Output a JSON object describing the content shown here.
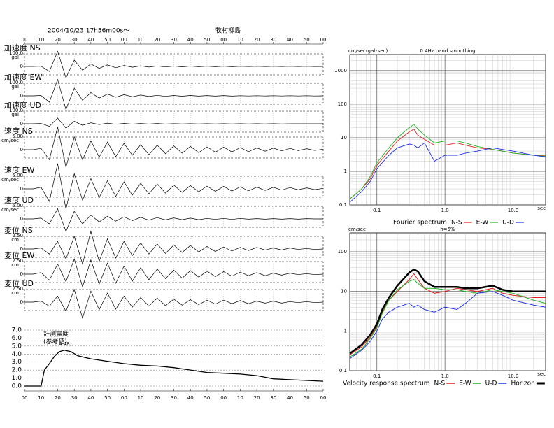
{
  "chart_data": [
    {
      "type": "seismogram",
      "date": "2004/10/23  17h56m00s～",
      "place": "牧村柳島",
      "xlim": [
        0,
        180
      ],
      "xticks": [
        {
          "value": 0,
          "label": "00"
        },
        10,
        20,
        30,
        40,
        50,
        {
          "value": 60,
          "label": "00"
        },
        {
          "value": 70,
          "label": "10"
        },
        {
          "value": 80,
          "label": "20"
        },
        {
          "value": 90,
          "label": "30"
        },
        {
          "value": 100,
          "label": "40"
        },
        {
          "value": 110,
          "label": "50"
        },
        {
          "value": 120,
          "label": "00"
        },
        {
          "value": 130,
          "label": "10"
        },
        {
          "value": 140,
          "label": "20"
        },
        {
          "value": 150,
          "label": "30"
        },
        {
          "value": 160,
          "label": "40"
        },
        {
          "value": 170,
          "label": "50"
        },
        {
          "value": 180,
          "label": "00"
        }
      ],
      "x": [
        0,
        5,
        10,
        15,
        20,
        25,
        30,
        35,
        40,
        45,
        50,
        55,
        60,
        65,
        70,
        75,
        80,
        85,
        90,
        95,
        100,
        105,
        110,
        115,
        120,
        125,
        130,
        135,
        140,
        145,
        150,
        155,
        160,
        165,
        170,
        175,
        180
      ],
      "traces": [
        {
          "name": "加速度 NS",
          "unit": "gal",
          "yticks": [
            0,
            {
              "value": 100,
              "label": "100.0"
            }
          ],
          "values": [
            0,
            0,
            2,
            -40,
            120,
            -90,
            50,
            -30,
            20,
            -15,
            12,
            -10,
            8,
            -6,
            5,
            -5,
            4,
            -4,
            3,
            -3,
            3,
            -2,
            2,
            -2,
            2,
            -2,
            1,
            -1,
            1,
            -1,
            1,
            -1,
            1,
            -1,
            1,
            -1,
            0
          ]
        },
        {
          "name": "加速度 EW",
          "unit": "gal",
          "yticks": [
            0,
            {
              "value": 100,
              "label": "100.0"
            }
          ],
          "values": [
            0,
            0,
            3,
            -50,
            130,
            -110,
            60,
            -35,
            25,
            -18,
            14,
            -11,
            9,
            -7,
            6,
            -5,
            4,
            -4,
            3,
            -3,
            3,
            -2,
            2,
            -2,
            2,
            -2,
            1,
            -1,
            1,
            -1,
            1,
            -1,
            1,
            -1,
            1,
            -1,
            0
          ]
        },
        {
          "name": "加速度 UD",
          "unit": "gal",
          "yticks": [
            0,
            {
              "value": 100,
              "label": "100.0"
            }
          ],
          "values": [
            0,
            0,
            2,
            -20,
            45,
            -35,
            20,
            -12,
            8,
            -6,
            5,
            -4,
            3,
            -3,
            2,
            -2,
            2,
            -2,
            1,
            -1,
            1,
            -1,
            1,
            -1,
            1,
            -1,
            1,
            -1,
            1,
            -1,
            1,
            -1,
            0,
            0,
            0,
            0,
            0
          ]
        },
        {
          "name": "速度 NS",
          "unit": "cm/sec",
          "yticks": [
            0,
            {
              "value": 5,
              "label": "5.00"
            }
          ],
          "values": [
            0,
            0,
            0.5,
            -4,
            9,
            -7,
            5,
            -4,
            3.5,
            -3,
            3,
            -2.8,
            2.5,
            -2.2,
            2,
            -2,
            1.8,
            -1.6,
            1.5,
            -1.4,
            1.3,
            -1.2,
            1.1,
            -1,
            1,
            -0.9,
            0.8,
            -0.8,
            0.7,
            -0.6,
            0.6,
            -0.5,
            0.5,
            -0.4,
            0.4,
            -0.3,
            0.2
          ]
        },
        {
          "name": "速度 EW",
          "unit": "cm/sec",
          "yticks": [
            0,
            {
              "value": 5,
              "label": "5.00"
            }
          ],
          "values": [
            0,
            0,
            0.6,
            -5,
            10,
            -8,
            6,
            -4.5,
            4,
            -3.5,
            3.2,
            -3,
            2.8,
            -2.5,
            2.2,
            -2,
            1.9,
            -1.7,
            1.5,
            -1.4,
            1.3,
            -1.2,
            1.1,
            -1,
            1,
            -0.9,
            0.8,
            -0.8,
            0.7,
            -0.6,
            0.6,
            -0.5,
            0.5,
            -0.4,
            0.4,
            -0.3,
            0.2
          ]
        },
        {
          "name": "速度 UD",
          "unit": "cm/sec",
          "yticks": [
            0,
            {
              "value": 5,
              "label": "5.00"
            }
          ],
          "values": [
            0,
            0,
            0.3,
            -2,
            4,
            -5,
            3,
            -2,
            1.5,
            -1.2,
            1,
            -0.9,
            0.8,
            -0.7,
            0.6,
            -0.5,
            0.5,
            -0.4,
            0.4,
            -0.3,
            0.3,
            -0.3,
            0.2,
            -0.2,
            0.2,
            -0.2,
            0.2,
            -0.1,
            0.1,
            -0.1,
            0.1,
            -0.1,
            0.1,
            -0.1,
            0.1,
            0,
            0
          ]
        },
        {
          "name": "変位 NS",
          "unit": "cm",
          "yticks": [
            0,
            {
              "value": 2.5,
              "label": "2.50"
            }
          ],
          "values": [
            0,
            0,
            0.2,
            -1,
            1.5,
            -2,
            2.5,
            -3,
            3.5,
            -2.5,
            2,
            -1.8,
            1.5,
            -1.3,
            1.2,
            -1,
            1,
            -0.9,
            0.8,
            -0.7,
            0.7,
            -0.6,
            0.5,
            -0.5,
            0.4,
            -0.4,
            0.3,
            -0.3,
            0.3,
            -0.2,
            0.2,
            -0.2,
            0.2,
            -0.1,
            0.1,
            -0.1,
            0
          ]
        },
        {
          "name": "変位 EW",
          "unit": "cm",
          "yticks": [
            0,
            {
              "value": 2.5,
              "label": "2.50"
            }
          ],
          "values": [
            0,
            0,
            0.3,
            -1.2,
            2,
            -1.5,
            3,
            -2.5,
            2.8,
            -2,
            2.2,
            -1.8,
            1.6,
            -1.4,
            1.3,
            -1.1,
            1,
            -0.9,
            0.8,
            -0.8,
            0.7,
            -0.6,
            0.6,
            -0.5,
            0.5,
            -0.4,
            0.4,
            -0.3,
            0.3,
            -0.3,
            0.2,
            -0.2,
            0.2,
            -0.1,
            0.1,
            -0.1,
            0
          ]
        },
        {
          "name": "変位 UD",
          "unit": "cm",
          "yticks": [
            0,
            {
              "value": 2.5,
              "label": "2.50"
            }
          ],
          "values": [
            0,
            0,
            0.2,
            -0.8,
            1.2,
            -1.8,
            2.5,
            -3.2,
            2.2,
            -1.5,
            1.8,
            -1.4,
            1.2,
            -1,
            0.9,
            -0.8,
            0.8,
            -0.7,
            0.6,
            -0.6,
            0.5,
            -0.5,
            0.4,
            -0.4,
            0.4,
            -0.3,
            0.3,
            -0.3,
            0.2,
            -0.2,
            0.2,
            -0.2,
            0.1,
            -0.1,
            0.1,
            -0.1,
            0
          ]
        }
      ]
    },
    {
      "type": "line",
      "title": "計測震度",
      "subtitle": "(参考値)",
      "color": "#000000",
      "x": [
        0,
        10,
        11,
        12,
        15,
        18,
        21,
        24,
        28,
        32,
        40,
        50,
        60,
        70,
        80,
        90,
        100,
        110,
        120,
        130,
        140,
        150,
        160,
        170,
        180
      ],
      "values": [
        0,
        0,
        1.0,
        2.0,
        2.8,
        3.7,
        4.3,
        4.48,
        4.3,
        3.8,
        3.4,
        3.1,
        2.8,
        2.6,
        2.5,
        2.3,
        2.0,
        1.7,
        1.6,
        1.5,
        1.3,
        0.9,
        0.8,
        0.7,
        0.6
      ],
      "peak": {
        "x": 24,
        "value": 4.48
      },
      "xlim": [
        0,
        180
      ],
      "ylim": [
        0,
        7
      ],
      "yticks": [
        {
          "value": 0,
          "label": "0.0"
        },
        {
          "value": 1,
          "label": "1.0"
        },
        {
          "value": 2,
          "label": "2.0"
        },
        {
          "value": 3,
          "label": "3.0"
        },
        {
          "value": 4,
          "label": "4.0"
        },
        {
          "value": 5,
          "label": "5.0"
        },
        {
          "value": 6,
          "label": "6.0"
        },
        {
          "value": 7,
          "label": "7.0"
        }
      ],
      "xticks": [
        {
          "value": 0,
          "label": "00"
        },
        10,
        20,
        30,
        40,
        50,
        {
          "value": 60,
          "label": "00"
        },
        {
          "value": 70,
          "label": "10"
        },
        {
          "value": 80,
          "label": "20"
        },
        {
          "value": 90,
          "label": "30"
        },
        {
          "value": 100,
          "label": "40"
        },
        {
          "value": 110,
          "label": "50"
        },
        {
          "value": 120,
          "label": "00"
        },
        {
          "value": 130,
          "label": "10"
        },
        {
          "value": 140,
          "label": "20"
        },
        {
          "value": 150,
          "label": "30"
        },
        {
          "value": 160,
          "label": "40"
        },
        {
          "value": 170,
          "label": "50"
        },
        {
          "value": 180,
          "label": "00"
        }
      ]
    },
    {
      "type": "loglog",
      "ylabel": "cm/sec(gal･sec)",
      "title": "0.4Hz band smoothing",
      "xlabel": "sec",
      "legend_title": "Fourier spectrum",
      "xscale": "log",
      "yscale": "log",
      "grid": true,
      "xlim": [
        0.04,
        30
      ],
      "ylim": [
        0.1,
        3000
      ],
      "xticks": [
        0.1,
        {
          "value": 1,
          "label": "1.0"
        },
        {
          "value": 10,
          "label": "10.0"
        }
      ],
      "yticks": [
        0.1,
        1,
        10,
        100,
        1000
      ],
      "x": [
        0.04,
        0.06,
        0.08,
        0.1,
        0.15,
        0.2,
        0.3,
        0.35,
        0.4,
        0.5,
        0.7,
        1,
        1.5,
        2,
        3,
        5,
        10,
        20,
        30
      ],
      "series": [
        {
          "name": "N-S",
          "color": "#e02020",
          "values": [
            0.15,
            0.3,
            0.6,
            1.5,
            4,
            8,
            15,
            18,
            12,
            9,
            6,
            6,
            7,
            6,
            5,
            4.5,
            3.5,
            3,
            2.9
          ]
        },
        {
          "name": "E-W",
          "color": "#20b020",
          "values": [
            0.15,
            0.3,
            0.7,
            1.8,
            5,
            10,
            20,
            25,
            18,
            12,
            7,
            8,
            8,
            7,
            5.5,
            4.5,
            3.5,
            3,
            2.8
          ]
        },
        {
          "name": "U-D",
          "color": "#2030e0",
          "values": [
            0.12,
            0.25,
            0.5,
            1.2,
            3,
            5,
            6.5,
            6,
            5,
            7,
            2,
            3,
            3,
            3.5,
            4,
            5,
            4,
            3,
            2.7
          ]
        }
      ]
    },
    {
      "type": "loglog",
      "ylabel": "cm/sec",
      "title": "h=5%",
      "xlabel": "sec",
      "legend_title": "Velocity response spectrum",
      "xscale": "log",
      "yscale": "log",
      "grid": true,
      "xlim": [
        0.04,
        30
      ],
      "ylim": [
        0.1,
        300
      ],
      "xticks": [
        0.1,
        {
          "value": 1,
          "label": "1.0"
        },
        {
          "value": 10,
          "label": "10.0"
        }
      ],
      "yticks": [
        0.1,
        1,
        10,
        100
      ],
      "x": [
        0.04,
        0.06,
        0.08,
        0.1,
        0.12,
        0.15,
        0.2,
        0.3,
        0.35,
        0.4,
        0.5,
        0.7,
        1,
        1.5,
        2,
        3,
        5,
        7,
        10,
        20,
        30
      ],
      "series": [
        {
          "name": "N-S",
          "color": "#e02020",
          "width": 1,
          "values": [
            0.25,
            0.4,
            0.7,
            1.3,
            3,
            6,
            10,
            20,
            28,
            20,
            12,
            9,
            10,
            12,
            11,
            10,
            12,
            9,
            8,
            7,
            7
          ]
        },
        {
          "name": "E-W",
          "color": "#20b020",
          "width": 1,
          "values": [
            0.22,
            0.35,
            0.65,
            1.2,
            2.8,
            6,
            11,
            18,
            20,
            16,
            12,
            12,
            11,
            11,
            10,
            9,
            11,
            10,
            9,
            6,
            5
          ]
        },
        {
          "name": "U-D",
          "color": "#2030e0",
          "width": 1,
          "values": [
            0.2,
            0.33,
            0.55,
            1,
            2,
            3,
            4,
            5,
            4,
            4.5,
            3.5,
            3,
            4,
            3.5,
            5,
            9,
            10,
            8,
            6,
            4.5,
            4
          ]
        },
        {
          "name": "Horizon",
          "color": "#000000",
          "width": 2.5,
          "values": [
            0.27,
            0.45,
            0.8,
            1.5,
            3.5,
            7,
            14,
            30,
            36,
            32,
            18,
            13,
            13,
            13,
            12,
            12,
            14,
            11,
            10,
            10,
            10
          ]
        }
      ]
    }
  ]
}
